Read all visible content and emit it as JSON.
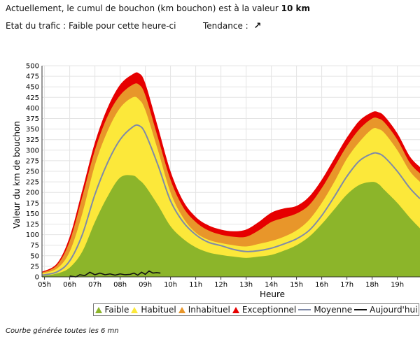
{
  "header": {
    "current_prefix": "Actuellement, le cumul de bouchon (km bouchon) est à la valeur",
    "current_value": "10 km",
    "status": "Etat du trafic : Faible pour cette heure-ci",
    "trend_label": "Tendance :",
    "trend_icon": "arrow-up-right-icon"
  },
  "footer": {
    "note": "Courbe générée toutes les 6 mn"
  },
  "chart_data": {
    "type": "area",
    "ylabel": "Valeur du  km de bouchon",
    "xlabel": "Heure",
    "ylim": [
      0,
      500
    ],
    "yticks": [
      0,
      25,
      50,
      75,
      100,
      125,
      150,
      175,
      200,
      225,
      250,
      275,
      300,
      325,
      350,
      375,
      400,
      425,
      450,
      475,
      500
    ],
    "xlim": [
      4.9,
      19.9
    ],
    "xticks": [
      {
        "label": "05h",
        "value": 5
      },
      {
        "label": "06h",
        "value": 6
      },
      {
        "label": "07h",
        "value": 7
      },
      {
        "label": "08h",
        "value": 8
      },
      {
        "label": "09h",
        "value": 9
      },
      {
        "label": "10h",
        "value": 10
      },
      {
        "label": "11h",
        "value": 11
      },
      {
        "label": "12h",
        "value": 12
      },
      {
        "label": "13h",
        "value": 13
      },
      {
        "label": "14h",
        "value": 14
      },
      {
        "label": "15h",
        "value": 15
      },
      {
        "label": "16h",
        "value": 16
      },
      {
        "label": "17h",
        "value": 17
      },
      {
        "label": "18h",
        "value": 18
      },
      {
        "label": "19h",
        "value": 19
      }
    ],
    "grid": true,
    "legend_position": "bottom",
    "x": [
      4.9,
      5.5,
      6.0,
      6.5,
      7.0,
      7.5,
      8.0,
      8.5,
      8.75,
      9.0,
      9.5,
      10.0,
      10.5,
      11.0,
      11.5,
      12.0,
      12.5,
      13.0,
      13.5,
      14.0,
      14.5,
      15.0,
      15.5,
      16.0,
      16.5,
      17.0,
      17.5,
      18.0,
      18.25,
      18.5,
      19.0,
      19.5,
      19.9
    ],
    "series": [
      {
        "name": "Faible",
        "color": "#8cb52a",
        "values": [
          2,
          8,
          22,
          60,
          130,
          190,
          235,
          240,
          230,
          215,
          170,
          120,
          90,
          70,
          58,
          52,
          48,
          45,
          48,
          52,
          62,
          75,
          95,
          125,
          160,
          195,
          218,
          225,
          220,
          205,
          175,
          140,
          115
        ]
      },
      {
        "name": "Habituel",
        "color": "#fce83a",
        "values": [
          8,
          20,
          60,
          150,
          265,
          345,
          400,
          425,
          420,
          395,
          300,
          200,
          140,
          105,
          88,
          80,
          75,
          72,
          78,
          85,
          95,
          110,
          135,
          175,
          225,
          280,
          320,
          350,
          350,
          340,
          300,
          250,
          225
        ]
      },
      {
        "name": "Inhabituel",
        "color": "#e8962a",
        "values": [
          10,
          28,
          85,
          190,
          300,
          380,
          430,
          455,
          455,
          430,
          330,
          230,
          165,
          130,
          110,
          100,
          95,
          95,
          110,
          130,
          140,
          150,
          170,
          210,
          260,
          310,
          350,
          375,
          375,
          365,
          325,
          270,
          245
        ]
      },
      {
        "name": "Exceptionnel",
        "color": "#e60000",
        "values": [
          12,
          32,
          95,
          205,
          318,
          400,
          455,
          480,
          482,
          458,
          355,
          250,
          180,
          142,
          122,
          112,
          108,
          112,
          130,
          152,
          162,
          168,
          190,
          230,
          280,
          330,
          370,
          390,
          390,
          380,
          340,
          285,
          260
        ]
      },
      {
        "name": "Moyenne",
        "color": "#7f8aa8",
        "values": [
          4,
          12,
          38,
          100,
          195,
          270,
          325,
          355,
          358,
          340,
          265,
          180,
          130,
          100,
          82,
          74,
          65,
          60,
          62,
          68,
          78,
          90,
          110,
          145,
          190,
          238,
          275,
          292,
          292,
          283,
          250,
          210,
          185
        ]
      },
      {
        "name": "Aujourd'hui",
        "color": "#111111",
        "x": [
          6.0,
          6.25,
          6.4,
          6.6,
          6.8,
          7.0,
          7.2,
          7.4,
          7.6,
          7.8,
          8.0,
          8.2,
          8.4,
          8.55,
          8.7,
          8.85,
          9.0,
          9.15,
          9.3,
          9.45,
          9.6
        ],
        "values": [
          2,
          0,
          5,
          3,
          11,
          5,
          9,
          5,
          7,
          4,
          7,
          5,
          6,
          9,
          4,
          11,
          6,
          14,
          9,
          10,
          9
        ]
      }
    ]
  }
}
